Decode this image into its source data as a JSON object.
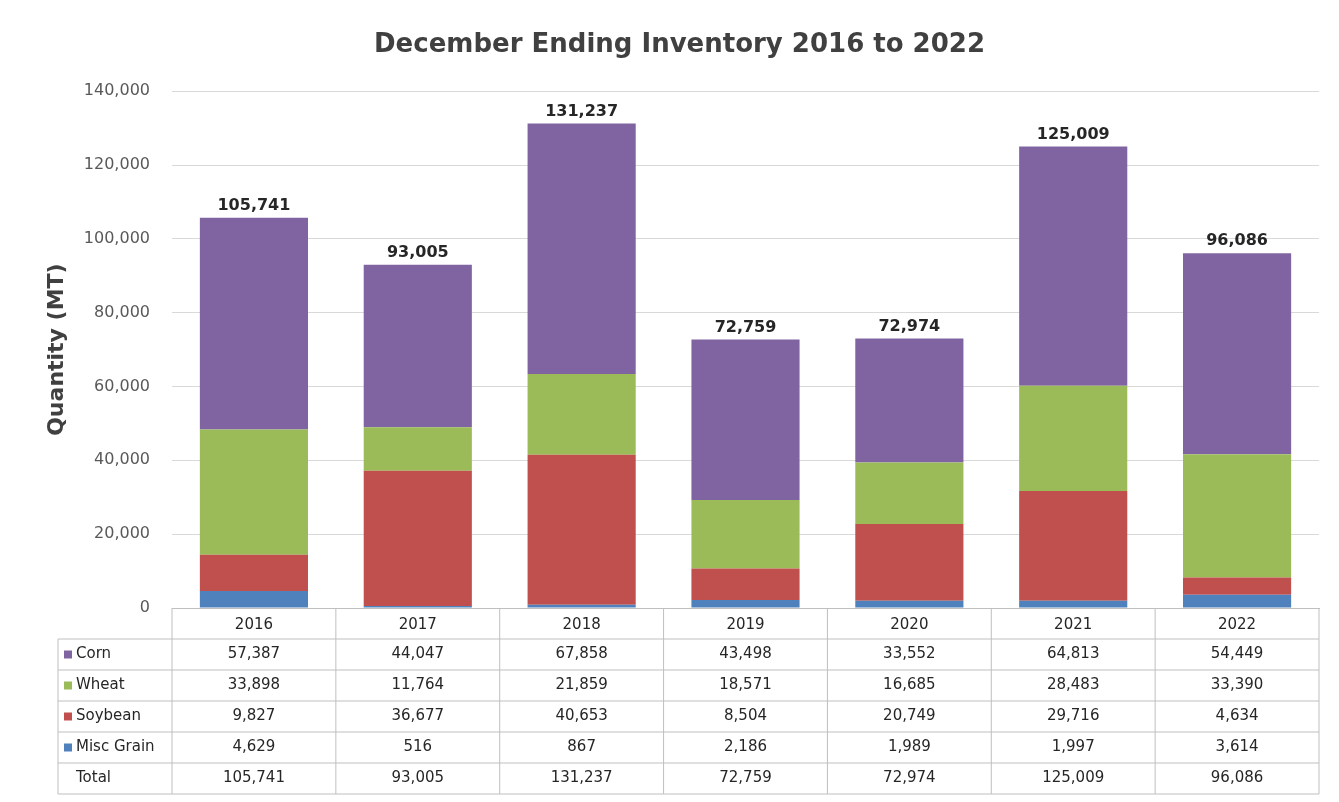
{
  "chart_data": {
    "type": "bar",
    "title": "December Ending Inventory 2016 to 2022",
    "ylabel": "Quantity (MT)",
    "categories": [
      "2016",
      "2017",
      "2018",
      "2019",
      "2020",
      "2021",
      "2022"
    ],
    "stacked": true,
    "series": [
      {
        "name": "Misc Grain",
        "color": "#4f81bd",
        "values": [
          4629,
          516,
          867,
          2186,
          1989,
          1997,
          3614
        ],
        "value_labels": [
          "4,629",
          "516",
          "867",
          "2,186",
          "1,989",
          "1,997",
          "3,614"
        ]
      },
      {
        "name": "Soybean",
        "color": "#c0504d",
        "values": [
          9827,
          36677,
          40653,
          8504,
          20749,
          29716,
          4634
        ],
        "value_labels": [
          "9,827",
          "36,677",
          "40,653",
          "8,504",
          "20,749",
          "29,716",
          "4,634"
        ]
      },
      {
        "name": "Wheat",
        "color": "#9bbb59",
        "values": [
          33898,
          11764,
          21859,
          18571,
          16685,
          28483,
          33390
        ],
        "value_labels": [
          "33,898",
          "11,764",
          "21,859",
          "18,571",
          "16,685",
          "28,483",
          "33,390"
        ]
      },
      {
        "name": "Corn",
        "color": "#8064a2",
        "values": [
          57387,
          44047,
          67858,
          43498,
          33552,
          64813,
          54449
        ],
        "value_labels": [
          "57,387",
          "44,047",
          "67,858",
          "43,498",
          "33,552",
          "64,813",
          "54,449"
        ]
      }
    ],
    "totals": [
      "105,741",
      "93,005",
      "131,237",
      "72,759",
      "72,974",
      "125,009",
      "96,086"
    ],
    "annotations": [
      "Total"
    ],
    "ylim": [
      0,
      140000
    ],
    "yticks": [
      0,
      {
        "value": 20000,
        "label": "20,000"
      },
      {
        "value": 40000,
        "label": "40,000"
      },
      {
        "value": 60000,
        "label": "60,000"
      },
      {
        "value": 80000,
        "label": "80,000"
      },
      {
        "value": 100000,
        "label": "100,000"
      },
      {
        "value": 120000,
        "label": "120,000"
      },
      {
        "value": 140000,
        "label": "140,000"
      }
    ],
    "grid": "y",
    "legend": "bottom"
  }
}
